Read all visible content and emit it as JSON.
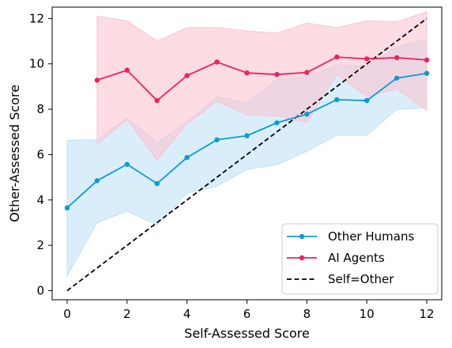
{
  "chart_data": {
    "type": "line",
    "title": "",
    "xlabel": "Self-Assessed Score",
    "ylabel": "Other-Assessed Score",
    "xlim": [
      -0.5,
      12.5
    ],
    "ylim": [
      -0.4,
      12.5
    ],
    "xticks": [
      0,
      2,
      4,
      6,
      8,
      10,
      12
    ],
    "yticks": [
      0,
      2,
      4,
      6,
      8,
      10,
      12
    ],
    "grid": false,
    "legend_position": "bottom-right",
    "series": [
      {
        "name": "Other Humans",
        "color": "#0b9bd6",
        "band_color": "#bfe3f6",
        "x": [
          0,
          1,
          2,
          3,
          4,
          5,
          6,
          7,
          8,
          9,
          10,
          11,
          12
        ],
        "y": [
          3.65,
          4.85,
          5.57,
          4.72,
          5.87,
          6.65,
          6.83,
          7.4,
          7.78,
          8.42,
          8.38,
          9.37,
          9.58
        ],
        "lower": [
          0.65,
          3.0,
          3.5,
          2.9,
          4.3,
          4.6,
          5.35,
          5.55,
          6.15,
          6.85,
          6.85,
          8.0,
          8.05
        ],
        "upper": [
          6.63,
          6.65,
          7.6,
          6.55,
          7.45,
          8.55,
          8.3,
          9.3,
          9.45,
          9.95,
          9.9,
          10.75,
          11.1
        ]
      },
      {
        "name": "AI Agents",
        "color": "#f0215c",
        "band_color": "#fbc4d2",
        "x": [
          1,
          2,
          3,
          4,
          5,
          6,
          7,
          8,
          9,
          10,
          11,
          12
        ],
        "y": [
          9.28,
          9.72,
          8.38,
          9.48,
          10.08,
          9.6,
          9.53,
          9.62,
          10.3,
          10.22,
          10.27,
          10.17
        ],
        "lower": [
          6.45,
          7.55,
          5.75,
          7.35,
          8.35,
          7.75,
          7.7,
          7.4,
          9.55,
          8.55,
          8.9,
          7.95
        ],
        "upper": [
          12.1,
          11.9,
          11.0,
          11.6,
          11.6,
          11.45,
          11.35,
          11.8,
          11.6,
          11.9,
          11.85,
          12.3
        ]
      }
    ],
    "reference_line": {
      "name": "Self=Other",
      "color": "#000000",
      "x": [
        0,
        12
      ],
      "y": [
        0,
        12
      ]
    }
  }
}
